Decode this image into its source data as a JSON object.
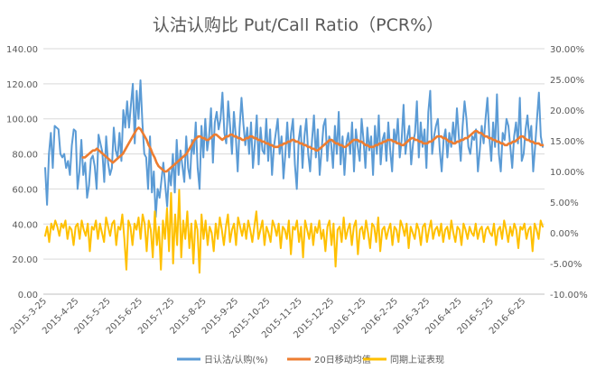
{
  "chart_data": {
    "type": "line",
    "title": "认沽认购比 Put/Call Ratio（PCR%）",
    "x_tick_labels": [
      "2015-3-25",
      "2015-4-25",
      "2015-5-25",
      "2015-6-25",
      "2015-7-25",
      "2015-8-25",
      "2015-9-25",
      "2015-10-25",
      "2015-11-25",
      "2015-12-25",
      "2016-1-25",
      "2016-2-25",
      "2016-3-25",
      "2016-4-25",
      "2016-5-25",
      "2016-6-25"
    ],
    "y_left": {
      "min": 0,
      "max": 140,
      "step": 20,
      "tick_labels": [
        "0.00",
        "20.00",
        "40.00",
        "60.00",
        "80.00",
        "100.00",
        "120.00",
        "140.00"
      ]
    },
    "y_right": {
      "min": -10,
      "max": 30,
      "step": 5,
      "tick_labels": [
        "-10.00%",
        "-5.00%",
        "0.00%",
        "5.00%",
        "10.00%",
        "15.00%",
        "20.00%",
        "25.00%",
        "30.00%"
      ]
    },
    "grid": true,
    "legend_position": "bottom",
    "series": [
      {
        "name": "日认沽/认购(%)",
        "axis": "left",
        "color": "#5B9BD5",
        "values": [
          72,
          51,
          80,
          92,
          72,
          96,
          95,
          94,
          80,
          78,
          80,
          72,
          76,
          68,
          85,
          94,
          93,
          60,
          70,
          88,
          68,
          75,
          55,
          62,
          77,
          79,
          73,
          60,
          91,
          86,
          81,
          64,
          90,
          75,
          68,
          72,
          95,
          82,
          78,
          92,
          76,
          105,
          95,
          110,
          95,
          108,
          120,
          86,
          116,
          100,
          122,
          98,
          80,
          78,
          60,
          90,
          58,
          70,
          44,
          60,
          55,
          65,
          75,
          62,
          50,
          70,
          62,
          80,
          58,
          88,
          68,
          82,
          73,
          64,
          90,
          72,
          66,
          88,
          80,
          98,
          72,
          60,
          96,
          78,
          100,
          82,
          90,
          106,
          75,
          98,
          104,
          94,
          100,
          115,
          92,
          86,
          110,
          96,
          80,
          104,
          90,
          70,
          95,
          112,
          97,
          85,
          95,
          80,
          98,
          72,
          86,
          102,
          74,
          95,
          82,
          80,
          100,
          76,
          94,
          68,
          84,
          92,
          100,
          80,
          90,
          66,
          80,
          98,
          78,
          92,
          100,
          74,
          60,
          88,
          96,
          72,
          90,
          100,
          80,
          70,
          88,
          102,
          78,
          94,
          68,
          82,
          96,
          100,
          76,
          90,
          86,
          72,
          96,
          80,
          104,
          74,
          90,
          68,
          86,
          92,
          80,
          98,
          70,
          94,
          84,
          76,
          100,
          88,
          72,
          95,
          82,
          90,
          68,
          96,
          80,
          102,
          74,
          88,
          92,
          76,
          98,
          82,
          70,
          94,
          86,
          100,
          78,
          88,
          108,
          80,
          90,
          96,
          74,
          86,
          92,
          110,
          78,
          98,
          84,
          94,
          72,
          104,
          116,
          80,
          90,
          96,
          100,
          82,
          70,
          88,
          94,
          78,
          92,
          84,
          98,
          86,
          106,
          90,
          76,
          96,
          110,
          100,
          84,
          80,
          90,
          88,
          94,
          70,
          82,
          96,
          86,
          100,
          112,
          90,
          76,
          98,
          84,
          114,
          80,
          70,
          92,
          88,
          100,
          96,
          84,
          72,
          90,
          98,
          86,
          112,
          76,
          80,
          94,
          102,
          88,
          96,
          70,
          84,
          100,
          115,
          90,
          84
        ]
      },
      {
        "name": "20日移动均值",
        "axis": "left",
        "color": "#ED7D31",
        "values": [
          null,
          null,
          null,
          null,
          null,
          null,
          null,
          null,
          null,
          null,
          null,
          null,
          null,
          null,
          null,
          null,
          null,
          null,
          null,
          78,
          78,
          79,
          80,
          81,
          82,
          82,
          83,
          82,
          81,
          80,
          79,
          78,
          77,
          76,
          75,
          76,
          77,
          78,
          79,
          80,
          82,
          84,
          86,
          88,
          90,
          92,
          94,
          95,
          94,
          92,
          90,
          88,
          85,
          83,
          80,
          78,
          75,
          73,
          72,
          71,
          70,
          70,
          71,
          72,
          73,
          74,
          75,
          76,
          77,
          78,
          79,
          80,
          82,
          84,
          86,
          88,
          89,
          90,
          90,
          89,
          89,
          88,
          88,
          89,
          90,
          91,
          91,
          90,
          89,
          88,
          89,
          90,
          90,
          91,
          91,
          90,
          90,
          89,
          89,
          88,
          88,
          89,
          89,
          90,
          90,
          89,
          89,
          88,
          88,
          87,
          87,
          86,
          86,
          85,
          85,
          84,
          84,
          84,
          85,
          85,
          86,
          86,
          87,
          87,
          88,
          88,
          87,
          87,
          86,
          86,
          85,
          85,
          84,
          84,
          83,
          83,
          82,
          82,
          83,
          84,
          85,
          86,
          87,
          88,
          88,
          87,
          86,
          86,
          85,
          85,
          84,
          84,
          85,
          86,
          87,
          88,
          88,
          88,
          87,
          87,
          86,
          85,
          85,
          84,
          84,
          84,
          85,
          85,
          86,
          86,
          87,
          87,
          88,
          88,
          88,
          87,
          87,
          86,
          86,
          85,
          85,
          86,
          87,
          88,
          89,
          89,
          88,
          88,
          87,
          87,
          86,
          86,
          86,
          87,
          87,
          88,
          89,
          90,
          90,
          90,
          89,
          89,
          88,
          87,
          87,
          86,
          86,
          87,
          87,
          88,
          88,
          89,
          89,
          90,
          91,
          92,
          93,
          93,
          92,
          92,
          91,
          90,
          90,
          89,
          89,
          88,
          88,
          87,
          87,
          86,
          86,
          85,
          85,
          86,
          86,
          87,
          87,
          88,
          89,
          90,
          90,
          89,
          88,
          88,
          87,
          87,
          86,
          86,
          86,
          85,
          85
        ]
      },
      {
        "name": "同期上证表现",
        "axis": "right",
        "color": "#FFC000",
        "values": [
          -0.5,
          1.0,
          -1.5,
          1.5,
          0.5,
          2.0,
          1.0,
          -0.5,
          1.5,
          0.8,
          2.0,
          -1.0,
          1.0,
          0.5,
          -2.0,
          1.0,
          1.5,
          -1.0,
          2.0,
          0.5,
          -0.5,
          1.5,
          -3.0,
          1.0,
          0.5,
          2.0,
          -1.0,
          1.5,
          0.0,
          -1.5,
          2.5,
          1.0,
          -0.5,
          1.5,
          2.0,
          -2.0,
          1.0,
          0.5,
          3.0,
          -1.0,
          -6.0,
          2.0,
          1.0,
          -2.0,
          1.5,
          0.5,
          2.5,
          -1.0,
          3.0,
          1.5,
          -3.0,
          2.0,
          0.5,
          -4.0,
          3.5,
          -2.0,
          1.0,
          -6.0,
          2.0,
          -1.0,
          4.0,
          -3.0,
          6.5,
          -5.0,
          3.0,
          -2.0,
          7.0,
          -4.0,
          2.0,
          -1.0,
          3.5,
          -2.5,
          1.5,
          -5.0,
          2.0,
          0.5,
          -6.5,
          3.0,
          -1.0,
          2.0,
          -2.0,
          1.0,
          0.0,
          -3.0,
          1.5,
          -1.0,
          2.5,
          0.5,
          -2.0,
          1.0,
          3.0,
          -1.5,
          0.5,
          1.5,
          -2.0,
          2.5,
          1.0,
          -0.5,
          1.5,
          -1.0,
          2.0,
          0.5,
          -1.5,
          1.0,
          3.5,
          -1.0,
          0.5,
          2.0,
          -2.0,
          1.0,
          0.0,
          -1.5,
          2.0,
          1.0,
          -0.5,
          1.5,
          -2.5,
          1.0,
          0.5,
          -1.0,
          2.0,
          -3.5,
          1.0,
          0.5,
          2.0,
          -1.5,
          1.0,
          -4.0,
          2.0,
          0.5,
          -1.0,
          1.5,
          -2.0,
          1.0,
          0.0,
          2.0,
          -1.0,
          0.5,
          -3.0,
          1.0,
          2.0,
          -2.0,
          1.5,
          -5.5,
          0.5,
          1.0,
          -1.5,
          2.5,
          -1.0,
          0.5,
          1.5,
          -2.0,
          1.0,
          2.0,
          -3.5,
          0.5,
          1.0,
          -1.0,
          2.0,
          0.0,
          -2.5,
          1.5,
          1.0,
          -1.5,
          2.5,
          -3.0,
          0.5,
          1.0,
          -1.0,
          0.5,
          1.5,
          -2.0,
          1.0,
          0.5,
          -1.5,
          2.0,
          1.0,
          -0.5,
          1.5,
          -2.5,
          1.0,
          0.0,
          -1.0,
          1.5,
          0.5,
          -2.0,
          1.0,
          1.5,
          -1.5,
          0.5,
          2.0,
          -1.0,
          0.5,
          1.0,
          -0.5,
          1.5,
          -1.5,
          0.5,
          1.0,
          -1.0,
          2.0,
          0.0,
          -1.5,
          1.0,
          0.5,
          -2.0,
          1.5,
          0.5,
          -1.0,
          1.0,
          0.0,
          -0.5,
          1.5,
          -1.0,
          0.5,
          1.0,
          -1.5,
          0.5,
          1.0,
          0.0,
          -0.5,
          1.5,
          -2.0,
          0.5,
          1.0,
          -1.0,
          2.0,
          0.5,
          -1.5,
          1.0,
          -0.5,
          1.5,
          0.5,
          -2.5,
          1.0,
          0.5,
          1.5,
          -1.0,
          0.5,
          1.0,
          -3.0,
          1.5,
          0.5,
          -1.0,
          2.0,
          1.0
        ]
      }
    ]
  }
}
